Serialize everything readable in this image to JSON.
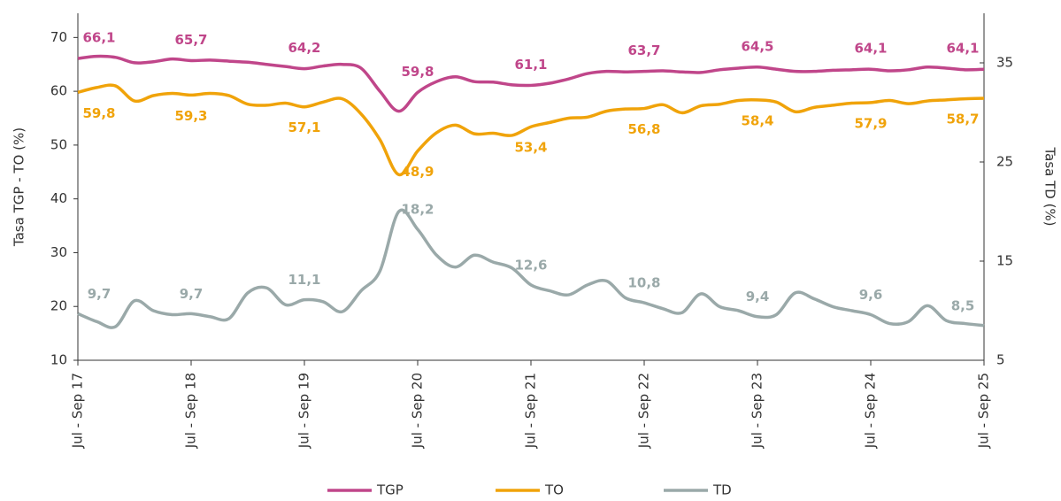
{
  "chart_data": {
    "type": "line",
    "categories": [
      "Jul - Sep 17",
      null,
      null,
      null,
      null,
      null,
      "Jul - Sep 18",
      null,
      null,
      null,
      null,
      null,
      "Jul - Sep 19",
      null,
      null,
      null,
      null,
      null,
      "Jul - Sep 20",
      null,
      null,
      null,
      null,
      null,
      "Jul - Sep 21",
      null,
      null,
      null,
      null,
      null,
      "Jul - Sep 22",
      null,
      null,
      null,
      null,
      null,
      "Jul - Sep 23",
      null,
      null,
      null,
      null,
      null,
      "Jul - Sep 24",
      null,
      null,
      null,
      null,
      null,
      "Jul - Sep 25"
    ],
    "y_label": "Tasa TGP - TO (%)",
    "y2_label": "Tasa TD (%)",
    "ylim": [
      10,
      74.5
    ],
    "yticks": [
      10,
      20,
      30,
      40,
      50,
      60,
      70
    ],
    "y2lim": [
      5,
      40
    ],
    "y2ticks": [
      5,
      15,
      25,
      35
    ],
    "series": [
      {
        "name": "TGP",
        "color": "#c0468a",
        "axis": "y",
        "values": [
          66.1,
          66.5,
          66.3,
          65.3,
          65.5,
          66.0,
          65.7,
          65.8,
          65.6,
          65.4,
          65.0,
          64.6,
          64.2,
          64.7,
          65.0,
          64.3,
          60.0,
          56.3,
          59.8,
          61.8,
          62.7,
          61.8,
          61.7,
          61.2,
          61.1,
          61.5,
          62.3,
          63.3,
          63.7,
          63.6,
          63.7,
          63.8,
          63.6,
          63.5,
          64.0,
          64.3,
          64.5,
          64.1,
          63.7,
          63.7,
          63.9,
          64.0,
          64.1,
          63.8,
          64.0,
          64.5,
          64.3,
          64.0,
          64.1
        ],
        "value_labels": [
          "66,1",
          null,
          null,
          null,
          null,
          null,
          "65,7",
          null,
          null,
          null,
          null,
          null,
          "64,2",
          null,
          null,
          null,
          null,
          null,
          "59,8",
          null,
          null,
          null,
          null,
          null,
          "61,1",
          null,
          null,
          null,
          null,
          null,
          "63,7",
          null,
          null,
          null,
          null,
          null,
          "64,5",
          null,
          null,
          null,
          null,
          null,
          "64,1",
          null,
          null,
          null,
          null,
          null,
          "64,1"
        ]
      },
      {
        "name": "TO",
        "color": "#f0a30a",
        "axis": "y",
        "values": [
          59.8,
          60.7,
          61.0,
          58.2,
          59.2,
          59.6,
          59.3,
          59.6,
          59.2,
          57.6,
          57.4,
          57.8,
          57.1,
          58.0,
          58.6,
          55.8,
          51.0,
          44.5,
          48.9,
          52.3,
          53.7,
          52.1,
          52.2,
          51.8,
          53.4,
          54.2,
          55.0,
          55.2,
          56.3,
          56.7,
          56.8,
          57.5,
          56.0,
          57.3,
          57.6,
          58.3,
          58.4,
          58.0,
          56.2,
          57.0,
          57.4,
          57.8,
          57.9,
          58.3,
          57.7,
          58.2,
          58.4,
          58.6,
          58.7
        ],
        "value_labels": [
          "59,8",
          null,
          null,
          null,
          null,
          null,
          "59,3",
          null,
          null,
          null,
          null,
          null,
          "57,1",
          null,
          null,
          null,
          null,
          null,
          "48,9",
          null,
          null,
          null,
          null,
          null,
          "53,4",
          null,
          null,
          null,
          null,
          null,
          "56,8",
          null,
          null,
          null,
          null,
          null,
          "58,4",
          null,
          null,
          null,
          null,
          null,
          "57,9",
          null,
          null,
          null,
          null,
          null,
          "58,7"
        ]
      },
      {
        "name": "TD",
        "color": "#9aa9a9",
        "axis": "y2",
        "values": [
          9.7,
          8.9,
          8.4,
          11.0,
          10.0,
          9.6,
          9.7,
          9.4,
          9.2,
          11.8,
          12.3,
          10.6,
          11.1,
          10.9,
          9.9,
          12.0,
          14.0,
          20.0,
          18.2,
          15.6,
          14.4,
          15.6,
          14.9,
          14.3,
          12.6,
          12.0,
          11.6,
          12.6,
          13.0,
          11.3,
          10.8,
          10.2,
          9.8,
          11.7,
          10.4,
          10.0,
          9.4,
          9.6,
          11.8,
          11.2,
          10.4,
          10.0,
          9.6,
          8.7,
          8.9,
          10.5,
          9.0,
          8.7,
          8.5
        ],
        "value_labels": [
          "9,7",
          null,
          null,
          null,
          null,
          null,
          "9,7",
          null,
          null,
          null,
          null,
          null,
          "11,1",
          null,
          null,
          null,
          null,
          null,
          "18,2",
          null,
          null,
          null,
          null,
          null,
          "12,6",
          null,
          null,
          null,
          null,
          null,
          "10,8",
          null,
          null,
          null,
          null,
          null,
          "9,4",
          null,
          null,
          null,
          null,
          null,
          "9,6",
          null,
          null,
          null,
          null,
          null,
          "8,5"
        ]
      }
    ]
  }
}
